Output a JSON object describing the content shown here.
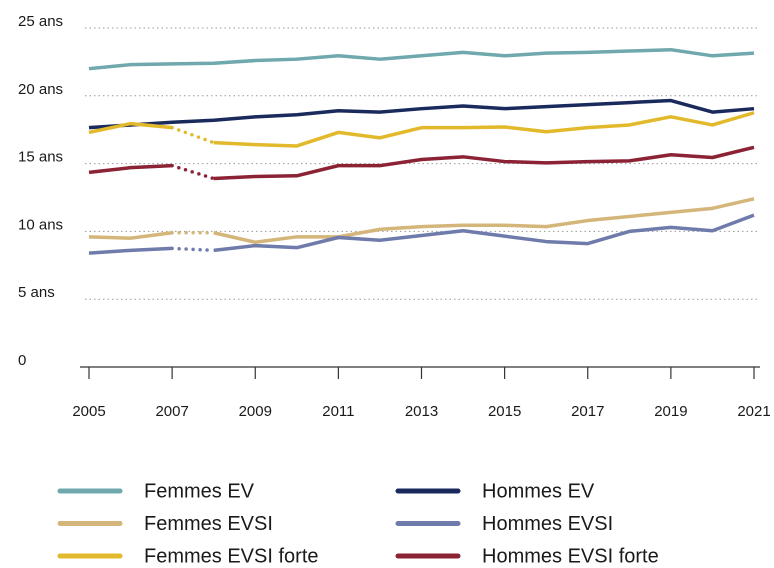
{
  "chart_data": {
    "type": "line",
    "x": [
      2005,
      2006,
      2007,
      2008,
      2009,
      2010,
      2011,
      2012,
      2013,
      2014,
      2015,
      2016,
      2017,
      2018,
      2019,
      2020,
      2021
    ],
    "xlim": [
      2005,
      2021
    ],
    "xticks": [
      2005,
      2007,
      2009,
      2011,
      2013,
      2015,
      2017,
      2019,
      2021
    ],
    "ylim": [
      0,
      25
    ],
    "yticks": [
      0,
      {
        "value": 5,
        "label": "5 ans"
      },
      {
        "value": 10,
        "label": "10 ans"
      },
      {
        "value": 15,
        "label": "15 ans"
      },
      {
        "value": 20,
        "label": "20 ans"
      },
      {
        "value": 25,
        "label": "25 ans"
      }
    ],
    "grid": true,
    "legend": "bottom",
    "series": [
      {
        "name": "Femmes EV",
        "color": "#6fa8ad",
        "values": [
          22.0,
          22.3,
          22.35,
          22.4,
          22.6,
          22.7,
          22.95,
          22.7,
          22.95,
          23.2,
          22.95,
          23.15,
          23.2,
          23.3,
          23.4,
          22.95,
          23.15
        ]
      },
      {
        "name": "Hommes EV",
        "color": "#1b2a5c",
        "values": [
          17.65,
          17.85,
          18.05,
          18.2,
          18.45,
          18.6,
          18.9,
          18.8,
          19.05,
          19.25,
          19.05,
          19.2,
          19.35,
          19.5,
          19.65,
          18.8,
          19.05
        ]
      },
      {
        "name": "Femmes EVSI",
        "color": "#d4b57a",
        "dotted": [
          2007,
          2008
        ],
        "values": [
          9.6,
          9.5,
          9.9,
          9.9,
          9.2,
          9.6,
          9.6,
          10.15,
          10.35,
          10.45,
          10.45,
          10.35,
          10.8,
          11.1,
          11.4,
          11.7,
          12.4
        ]
      },
      {
        "name": "Hommes EVSI",
        "color": "#6e7bab",
        "dotted": [
          2007,
          2008
        ],
        "values": [
          8.4,
          8.6,
          8.75,
          8.6,
          8.95,
          8.8,
          9.55,
          9.35,
          9.7,
          10.05,
          9.65,
          9.25,
          9.1,
          10.0,
          10.3,
          10.05,
          11.2
        ]
      },
      {
        "name": "Femmes EVSI forte",
        "color": "#e2b92a",
        "dotted": [
          2007,
          2008
        ],
        "values": [
          17.3,
          17.95,
          17.65,
          16.55,
          16.4,
          16.3,
          17.3,
          16.9,
          17.65,
          17.65,
          17.7,
          17.35,
          17.65,
          17.85,
          18.45,
          17.85,
          18.75
        ]
      },
      {
        "name": "Hommes EVSI forte",
        "color": "#8b2335",
        "dotted": [
          2007,
          2008
        ],
        "values": [
          14.35,
          14.7,
          14.85,
          13.9,
          14.05,
          14.1,
          14.85,
          14.85,
          15.3,
          15.5,
          15.15,
          15.05,
          15.15,
          15.2,
          15.65,
          15.45,
          16.2
        ]
      }
    ]
  }
}
